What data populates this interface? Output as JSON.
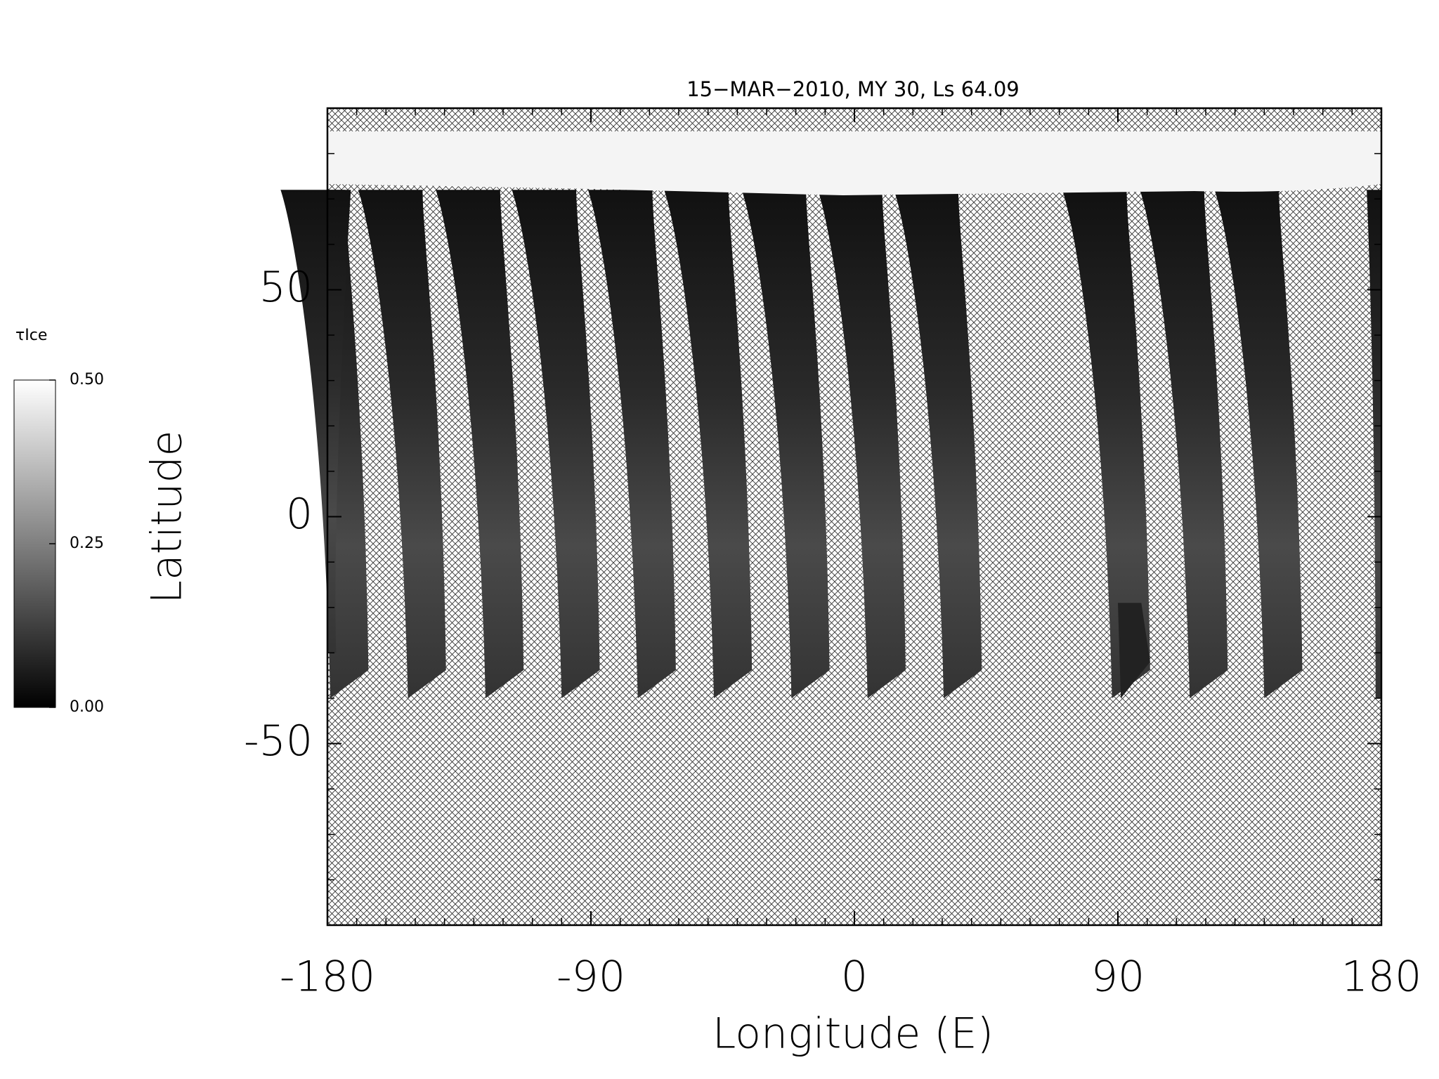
{
  "chart_data": {
    "type": "map",
    "title": "15−MAR−2010, MY 30,  Ls 64.09",
    "x_label": "Longitude (E)",
    "y_label": "Latitude",
    "xlim": [
      -180,
      180
    ],
    "xticks": [
      -180,
      -90,
      0,
      90,
      180
    ],
    "ylim": [
      -90,
      90
    ],
    "yticks": [
      -50,
      0,
      50
    ],
    "colorbar": {
      "label": "τIce",
      "clim": [
        0,
        0.5
      ],
      "ticks": [
        {
          "value": 0,
          "label": "0.00"
        },
        {
          "value": 0.25,
          "label": "0.25"
        },
        {
          "value": 0.5,
          "label": "0.50"
        }
      ]
    }
  }
}
